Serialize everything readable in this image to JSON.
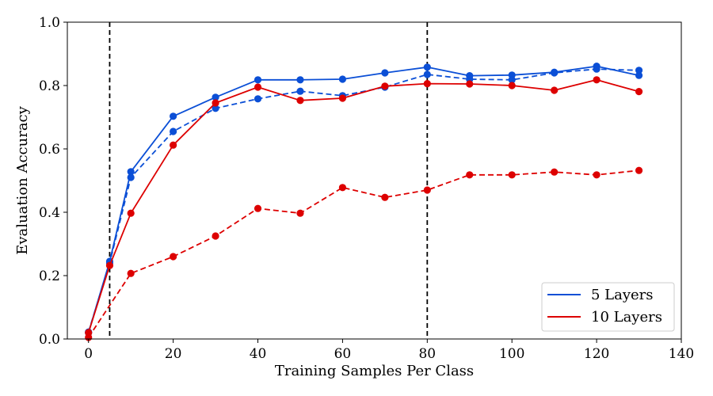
{
  "chart_data": {
    "type": "line",
    "title": "",
    "xlabel": "Training Samples Per Class",
    "ylabel": "Evaluation Accuracy",
    "xlim": [
      -5,
      140
    ],
    "ylim": [
      0.0,
      1.0
    ],
    "xticks": [
      0,
      20,
      40,
      60,
      80,
      100,
      120,
      140
    ],
    "yticks": [
      0.0,
      0.2,
      0.4,
      0.6,
      0.8,
      1.0
    ],
    "grid": false,
    "legend_position": "lower-right",
    "vlines": [
      5,
      80
    ],
    "legend": [
      {
        "label": "5 Layers",
        "color": "#0b4fd6"
      },
      {
        "label": "10 Layers",
        "color": "#dd0000"
      }
    ],
    "series": [
      {
        "name": "5 Layers",
        "color": "#0b4fd6",
        "linestyle": "solid",
        "x": [
          0,
          5,
          10,
          20,
          30,
          40,
          50,
          60,
          70,
          80,
          90,
          100,
          110,
          120,
          130
        ],
        "y": [
          0.02,
          0.245,
          0.528,
          0.703,
          0.763,
          0.818,
          0.818,
          0.82,
          0.84,
          0.858,
          0.831,
          0.833,
          0.842,
          0.861,
          0.832
        ]
      },
      {
        "color": "#0b4fd6",
        "linestyle": "dashed",
        "x": [
          0,
          5,
          10,
          20,
          30,
          40,
          50,
          60,
          70,
          80,
          90,
          100,
          110,
          120,
          130
        ],
        "y": [
          0.022,
          0.24,
          0.51,
          0.655,
          0.728,
          0.758,
          0.782,
          0.768,
          0.795,
          0.835,
          0.82,
          0.818,
          0.84,
          0.852,
          0.848
        ]
      },
      {
        "name": "10 Layers",
        "color": "#dd0000",
        "linestyle": "solid",
        "x": [
          0,
          5,
          10,
          20,
          30,
          40,
          50,
          60,
          70,
          80,
          90,
          100,
          110,
          120,
          130
        ],
        "y": [
          0.02,
          0.232,
          0.397,
          0.612,
          0.745,
          0.795,
          0.753,
          0.76,
          0.798,
          0.806,
          0.805,
          0.8,
          0.785,
          0.818,
          0.781
        ]
      },
      {
        "color": "#dd0000",
        "linestyle": "dashed",
        "x": [
          0,
          10,
          20,
          30,
          40,
          50,
          60,
          70,
          80,
          90,
          100,
          110,
          120,
          130
        ],
        "y": [
          0.005,
          0.207,
          0.26,
          0.325,
          0.412,
          0.397,
          0.478,
          0.447,
          0.47,
          0.518,
          0.518,
          0.527,
          0.518,
          0.532
        ]
      }
    ]
  }
}
